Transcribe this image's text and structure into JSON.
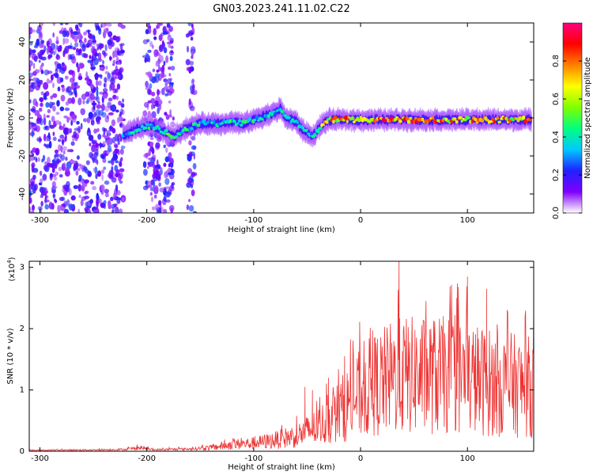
{
  "title": "GN03.2023.241.11.02.C22",
  "chart_data": [
    {
      "type": "heatmap",
      "xlabel": "Height of straight line (km)",
      "ylabel": "Frequency (Hz)",
      "xlim": [
        -310,
        162
      ],
      "ylim": [
        -50,
        50
      ],
      "xticks": [
        -300,
        -200,
        -100,
        0,
        100
      ],
      "yticks": [
        -40,
        -20,
        0,
        20,
        40
      ],
      "colorbar": {
        "label": "Normalized spectral amplitude",
        "range": [
          0,
          1
        ],
        "ticks": [
          0.0,
          0.2,
          0.4,
          0.6,
          0.8
        ],
        "colormap": "rainbow",
        "colors": [
          "#ffffff",
          "#7f00ff",
          "#2020ff",
          "#00c8ff",
          "#00ff80",
          "#80ff00",
          "#ffff00",
          "#ff8000",
          "#ff0000",
          "#ff0080"
        ]
      },
      "ridge": {
        "x": [
          -222,
          -210,
          -195,
          -185,
          -175,
          -165,
          -150,
          -140,
          -130,
          -120,
          -110,
          -100,
          -90,
          -80,
          -75,
          -70,
          -60,
          -55,
          -50,
          -45,
          -40,
          -35,
          -30,
          -20,
          0,
          20,
          40,
          60,
          80,
          100,
          120,
          140,
          160
        ],
        "y": [
          -9,
          -6,
          -4,
          -7,
          -10,
          -6,
          -3,
          -3,
          -3,
          -2,
          -3,
          -1,
          1,
          3,
          5,
          0,
          -2,
          -6,
          -8,
          -10,
          -6,
          -3,
          -1,
          -1,
          -1,
          -1,
          -1,
          -1,
          -1,
          -1,
          -1,
          -1,
          -1
        ],
        "peak_amplitude": [
          0.4,
          0.5,
          0.45,
          0.5,
          0.55,
          0.5,
          0.5,
          0.45,
          0.5,
          0.5,
          0.5,
          0.5,
          0.45,
          0.45,
          0.45,
          0.45,
          0.45,
          0.45,
          0.4,
          0.4,
          0.55,
          0.7,
          0.85,
          0.9,
          0.9,
          0.9,
          0.95,
          0.9,
          0.9,
          0.9,
          0.85,
          0.85,
          0.85
        ]
      },
      "scatter_regions_x": [
        [
          -310,
          -222
        ],
        [
          -202,
          -175
        ],
        [
          -162,
          -155
        ]
      ]
    },
    {
      "type": "line",
      "color": "#ee3333",
      "xlabel": "Height of straight line (km)",
      "ylabel": "SNR (10 * v/v)",
      "scale_label": "(x10",
      "scale_exponent": "4",
      "scale_suffix": ")",
      "xlim": [
        -310,
        162
      ],
      "ylim": [
        0,
        3.1
      ],
      "xticks": [
        -300,
        -200,
        -100,
        0,
        100
      ],
      "yticks": [
        0,
        1,
        2,
        3
      ],
      "envelope": {
        "x": [
          -310,
          -250,
          -220,
          -205,
          -195,
          -180,
          -160,
          -140,
          -120,
          -100,
          -80,
          -70,
          -60,
          -50,
          -40,
          -30,
          -20,
          -10,
          0,
          10,
          20,
          30,
          40,
          50,
          60,
          70,
          80,
          90,
          100,
          110,
          120,
          130,
          140,
          150,
          162
        ],
        "y": [
          0.02,
          0.03,
          0.04,
          0.08,
          0.03,
          0.04,
          0.05,
          0.08,
          0.15,
          0.18,
          0.25,
          0.3,
          0.35,
          0.45,
          0.55,
          0.7,
          0.9,
          1.1,
          1.3,
          1.45,
          1.55,
          1.65,
          1.7,
          1.7,
          1.7,
          1.7,
          1.7,
          1.7,
          1.65,
          1.6,
          1.55,
          1.5,
          1.5,
          1.45,
          1.45
        ]
      },
      "peaks": [
        {
          "x": 36,
          "y": 3.1
        },
        {
          "x": 100,
          "y": 2.85
        },
        {
          "x": 118,
          "y": 2.65
        },
        {
          "x": 90,
          "y": 2.5
        },
        {
          "x": 162,
          "y": 2.4
        },
        {
          "x": -45,
          "y": 1.0
        },
        {
          "x": -52,
          "y": 1.05
        },
        {
          "x": -30,
          "y": 1.2
        },
        {
          "x": -15,
          "y": 1.55
        }
      ]
    }
  ]
}
